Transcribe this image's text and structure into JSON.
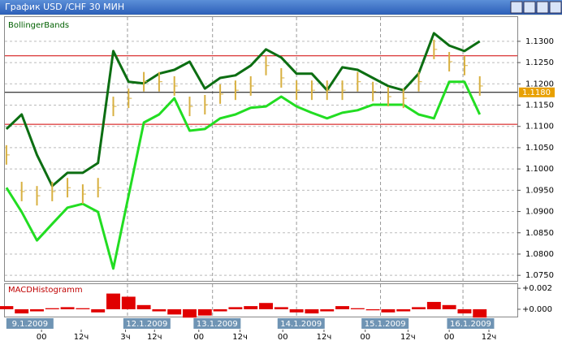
{
  "window": {
    "title": "График USD /CHF  30 МИН"
  },
  "chart_data": [
    {
      "type": "line",
      "title": "BollingerBands",
      "xlim": [
        -0.1,
        33.46
      ],
      "ylim": [
        1.0737,
        1.1357
      ],
      "yticks": [
        {
          "value": 1.13,
          "label": "1.1300"
        },
        {
          "value": 1.125,
          "label": "1.1250"
        },
        {
          "value": 1.12,
          "label": "1.1200"
        },
        {
          "value": 1.115,
          "label": "1.1150"
        },
        {
          "value": 1.11,
          "label": "1.1100"
        },
        {
          "value": 1.105,
          "label": "1.1050"
        },
        {
          "value": 1.1,
          "label": "1.1000"
        },
        {
          "value": 1.095,
          "label": "1.0950"
        },
        {
          "value": 1.09,
          "label": "1.0900"
        },
        {
          "value": 1.085,
          "label": "1.0850"
        },
        {
          "value": 1.08,
          "label": "1.0800"
        },
        {
          "value": 1.075,
          "label": "1.0750"
        }
      ],
      "grid": true,
      "day_lines": [
        7.93,
        13.5,
        19.0,
        24.5,
        29.9
      ],
      "hlines": [
        {
          "value": 1.1266,
          "color": "#d00000"
        },
        {
          "value": 1.1105,
          "color": "#d00000"
        },
        {
          "value": 1.118,
          "color": "#000000"
        }
      ],
      "price_label": {
        "value": 1.118,
        "label": "1.1180"
      },
      "series": [
        {
          "color": "#0c6e12",
          "style": "line",
          "values": [
            1.1094,
            1.1128,
            1.1033,
            1.096,
            1.0991,
            1.0991,
            1.1014,
            1.1277,
            1.1205,
            1.1201,
            1.1224,
            1.1233,
            1.1252,
            1.1189,
            1.1214,
            1.122,
            1.1243,
            1.1281,
            1.1262,
            1.1224,
            1.1224,
            1.1185,
            1.1239,
            1.1233,
            1.1214,
            1.1195,
            1.1185,
            1.1224,
            1.1319,
            1.129,
            1.1277,
            1.13
          ]
        },
        {
          "color": "#22dd22",
          "style": "line",
          "values": [
            1.0956,
            1.0899,
            1.0832,
            1.0871,
            1.0909,
            1.0918,
            1.0899,
            1.0766,
            1.0937,
            1.1109,
            1.1128,
            1.1166,
            1.109,
            1.1094,
            1.1119,
            1.1128,
            1.1144,
            1.1147,
            1.117,
            1.1147,
            1.1132,
            1.1119,
            1.1132,
            1.1138,
            1.1151,
            1.1151,
            1.1151,
            1.1128,
            1.1119,
            1.1205,
            1.1205,
            1.1128
          ]
        },
        {
          "color": "#d8b040",
          "style": "bars",
          "values": [
            1.1033,
            1.0947,
            1.0937,
            1.0947,
            1.0956,
            1.0941,
            1.0956,
            1.1147,
            1.1166,
            1.1205,
            1.1205,
            1.1195,
            1.1147,
            1.1151,
            1.1176,
            1.1185,
            1.1195,
            1.1243,
            1.1214,
            1.1185,
            1.1185,
            1.1185,
            1.1185,
            1.1205,
            1.1182,
            1.117,
            1.1166,
            1.1205,
            1.1281,
            1.1252,
            1.1243,
            1.1195
          ]
        }
      ]
    },
    {
      "type": "bar",
      "title": "MACDHistogramm",
      "xlim": [
        -0.1,
        33.46
      ],
      "ylim": [
        -0.0007,
        0.0024
      ],
      "yticks": [
        {
          "value": 0.002,
          "label": "+0.002"
        },
        {
          "value": 0,
          "label": "+0.000"
        }
      ],
      "color": "#e00000",
      "values": [
        0.0003,
        -0.0004,
        -0.0002,
        0.0001,
        0.0002,
        0.0001,
        -0.0003,
        0.0015,
        0.0012,
        0.0004,
        -0.0002,
        -0.0005,
        -0.0008,
        -0.0006,
        -0.0002,
        0.0002,
        0.0003,
        0.0006,
        0.0002,
        -0.0003,
        -0.0004,
        -0.0002,
        0.0003,
        0.0001,
        -0.0001,
        -0.0003,
        -0.0002,
        0.0002,
        0.0007,
        0.0004,
        -0.0004,
        -0.0008
      ],
      "date_labels": [
        {
          "value": 1.54,
          "label": "9.1.2009"
        },
        {
          "value": 9.2,
          "label": "12.1.2009"
        },
        {
          "value": 13.8,
          "label": "13.1.2009"
        },
        {
          "value": 19.3,
          "label": "14.1.2009"
        },
        {
          "value": 24.8,
          "label": "15.1.2009"
        },
        {
          "value": 30.4,
          "label": "16.1.2009"
        }
      ],
      "xticks": [
        {
          "value": 2.3,
          "label": "00"
        },
        {
          "value": 4.9,
          "label": "12ч"
        },
        {
          "value": 7.8,
          "label": "3ч"
        },
        {
          "value": 9.7,
          "label": "12ч"
        },
        {
          "value": 12.6,
          "label": "00"
        },
        {
          "value": 15.3,
          "label": "12ч"
        },
        {
          "value": 18.1,
          "label": "00"
        },
        {
          "value": 20.8,
          "label": "12ч"
        },
        {
          "value": 23.5,
          "label": "00"
        },
        {
          "value": 26.3,
          "label": "12ч"
        },
        {
          "value": 29,
          "label": "00"
        },
        {
          "value": 31.6,
          "label": "12ч"
        }
      ]
    }
  ]
}
